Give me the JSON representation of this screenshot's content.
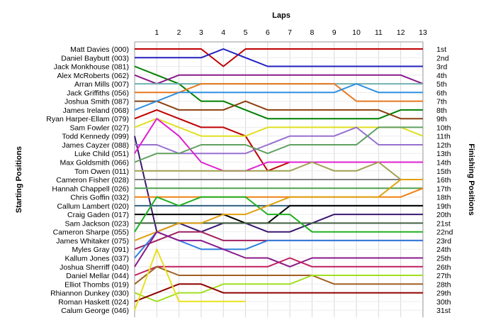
{
  "chart_data": {
    "type": "line",
    "title": "Laps",
    "ylabel_left": "Starting Positions",
    "ylabel_right": "Finishing Positions",
    "x": [
      0,
      1,
      2,
      3,
      4,
      5,
      6,
      7,
      8,
      9,
      10,
      11,
      12,
      13
    ],
    "x_tick_labels": [
      "1",
      "2",
      "3",
      "4",
      "5",
      "6",
      "7",
      "8",
      "9",
      "10",
      "11",
      "12",
      "13"
    ],
    "starting_labels": [
      "Matt Davies (000)",
      "Daniel Baybutt (003)",
      "Jack Monkhouse (081)",
      "Alex McRoberts (062)",
      "Arran Mills (007)",
      "Jack Griffiths (056)",
      "Joshua Smith (087)",
      "James Ireland (068)",
      "Ryan Harper-Ellam (079)",
      "Sam Fowler (027)",
      "Todd Kennedy (099)",
      "James Cayzer (088)",
      "Luke Child (051)",
      "Max Goldsmith (066)",
      "Tom Owen (011)",
      "Cameron Fisher (028)",
      "Hannah Chappell (026)",
      "Chris Goffin (032)",
      "Callum Lambert (020)",
      "Craig Gaden (017)",
      "Sam Jackson (023)",
      "Cameron Sharpe (055)",
      "James Whitaker (075)",
      "Myles Gray (091)",
      "Kallum Jones (037)",
      "Joshua Sherriff (040)",
      "Daniel Mellar (044)",
      "Elliot Thombs (019)",
      "Rhiannon Dunkey (030)",
      "Roman Haskett (024)",
      "Calum George (046)"
    ],
    "finishing_labels": [
      "1st",
      "2nd",
      "3rd",
      "4th",
      "5th",
      "6th",
      "7th",
      "8th",
      "9th",
      "10th",
      "11th",
      "12th",
      "13th",
      "14th",
      "15th",
      "16th",
      "17th",
      "18th",
      "19th",
      "20th",
      "21st",
      "22nd",
      "23rd",
      "24th",
      "25th",
      "26th",
      "27th",
      "28th",
      "29th",
      "30th",
      "31st"
    ],
    "y_range": [
      1,
      31
    ],
    "grid": true,
    "series": [
      {
        "color": "#c00000",
        "positions": [
          1,
          1,
          1,
          1,
          3,
          1,
          1,
          1,
          1,
          1,
          1,
          1,
          1,
          1
        ]
      },
      {
        "color": "#2020c0",
        "positions": [
          2,
          2,
          2,
          2,
          1,
          2,
          3,
          3,
          3,
          3,
          3,
          3,
          3,
          3
        ]
      },
      {
        "color": "#008000",
        "positions": [
          3,
          4,
          5,
          7,
          7,
          8,
          9,
          9,
          9,
          9,
          9,
          9,
          8,
          8
        ]
      },
      {
        "color": "#8b1a8b",
        "positions": [
          4,
          5,
          4,
          4,
          4,
          4,
          4,
          4,
          4,
          4,
          4,
          4,
          4,
          5
        ]
      },
      {
        "color": "#70b0b0",
        "positions": [
          5,
          5,
          5,
          5,
          5,
          5,
          5,
          5,
          5,
          5,
          5,
          5,
          5,
          5
        ]
      },
      {
        "color": "#e87820",
        "positions": [
          6,
          6,
          6,
          5,
          5,
          5,
          5,
          5,
          5,
          5,
          7,
          7,
          7,
          7
        ]
      },
      {
        "color": "#8b4010",
        "positions": [
          7,
          7,
          8,
          8,
          8,
          7,
          8,
          8,
          8,
          8,
          8,
          8,
          9,
          9
        ]
      },
      {
        "color": "#3090e0",
        "positions": [
          8,
          7,
          6,
          6,
          6,
          6,
          6,
          6,
          6,
          6,
          5,
          6,
          6,
          6
        ]
      },
      {
        "color": "#c00000",
        "positions": [
          9,
          8,
          9,
          10,
          10,
          11,
          15,
          14,
          14,
          14,
          14,
          14,
          14,
          14
        ]
      },
      {
        "color": "#e0e020",
        "positions": [
          10,
          9,
          10,
          11,
          11,
          11,
          10,
          10,
          10,
          10,
          10,
          10,
          10,
          11
        ]
      },
      {
        "color": "#3a1870",
        "positions": [
          11,
          22,
          21,
          22,
          21,
          21,
          22,
          22,
          21,
          20,
          20,
          20,
          20,
          20
        ]
      },
      {
        "color": "#9870d0",
        "positions": [
          12,
          12,
          13,
          13,
          13,
          13,
          12,
          11,
          11,
          11,
          10,
          12,
          12,
          12
        ]
      },
      {
        "color": "#e020d0",
        "positions": [
          13,
          9,
          11,
          14,
          15,
          15,
          14,
          14,
          14,
          14,
          14,
          14,
          14,
          14
        ]
      },
      {
        "color": "#60a060",
        "positions": [
          14,
          13,
          13,
          12,
          12,
          12,
          13,
          12,
          12,
          12,
          12,
          10,
          10,
          10
        ]
      },
      {
        "color": "#a0a050",
        "positions": [
          15,
          15,
          15,
          15,
          15,
          15,
          15,
          15,
          14,
          15,
          15,
          14,
          16,
          16
        ]
      },
      {
        "color": "#808080",
        "positions": [
          16,
          16,
          16,
          16,
          16,
          16,
          16,
          16,
          16,
          16,
          16,
          16,
          16,
          16
        ]
      },
      {
        "color": "#50a050",
        "positions": [
          17,
          17,
          17,
          17,
          17,
          17,
          17,
          17,
          17,
          17,
          17,
          17,
          17,
          17
        ]
      },
      {
        "color": "#f08010",
        "positions": [
          18,
          18,
          18,
          18,
          18,
          18,
          18,
          18,
          18,
          18,
          18,
          18,
          18,
          17
        ]
      },
      {
        "color": "#306080",
        "positions": [
          19,
          19,
          19,
          19,
          19,
          19,
          19,
          19,
          19,
          19,
          19,
          19,
          19,
          19
        ]
      },
      {
        "color": "#000000",
        "positions": [
          20,
          20,
          20,
          20,
          20,
          21,
          21,
          19,
          19,
          19,
          19,
          19,
          19,
          19
        ]
      },
      {
        "color": "#406040",
        "positions": [
          21,
          21,
          21,
          21,
          21,
          21,
          21,
          21,
          21,
          21,
          21,
          21,
          21,
          21
        ]
      },
      {
        "color": "#20b020",
        "positions": [
          22,
          18,
          19,
          18,
          18,
          18,
          20,
          20,
          22,
          22,
          22,
          22,
          22,
          22
        ]
      },
      {
        "color": "#e0a010",
        "positions": [
          23,
          22,
          21,
          21,
          20,
          20,
          19,
          18,
          18,
          18,
          18,
          18,
          16,
          16
        ]
      },
      {
        "color": "#a02060",
        "positions": [
          24,
          23,
          22,
          22,
          23,
          23,
          23,
          23,
          23,
          23,
          23,
          23,
          23,
          23
        ]
      },
      {
        "color": "#3080e0",
        "positions": [
          25,
          22,
          23,
          24,
          24,
          24,
          23,
          23,
          23,
          23,
          23,
          23,
          23,
          23
        ]
      },
      {
        "color": "#8b1a8b",
        "positions": [
          26,
          22,
          23,
          23,
          24,
          25,
          25,
          26,
          25,
          25,
          25,
          25,
          25,
          25
        ]
      },
      {
        "color": "#c02060",
        "positions": [
          27,
          26,
          26,
          26,
          26,
          26,
          26,
          25,
          26,
          26,
          26,
          26,
          26,
          26
        ]
      },
      {
        "color": "#a06020",
        "positions": [
          28,
          26,
          27,
          27,
          27,
          27,
          27,
          27,
          27,
          28,
          28,
          28,
          28,
          28
        ]
      },
      {
        "color": "#a0e020",
        "positions": [
          29,
          30,
          29,
          29,
          28,
          28,
          28,
          28,
          27,
          27,
          27,
          27,
          27,
          27
        ]
      },
      {
        "color": "#900000",
        "positions": [
          30,
          29,
          28,
          28,
          29,
          29,
          29,
          29,
          29,
          29,
          29,
          29,
          29,
          29
        ]
      },
      {
        "color": "#e8e020",
        "positions": [
          31,
          24,
          30,
          30,
          30,
          30,
          null,
          null,
          null,
          null,
          null,
          null,
          null,
          null
        ]
      }
    ]
  }
}
